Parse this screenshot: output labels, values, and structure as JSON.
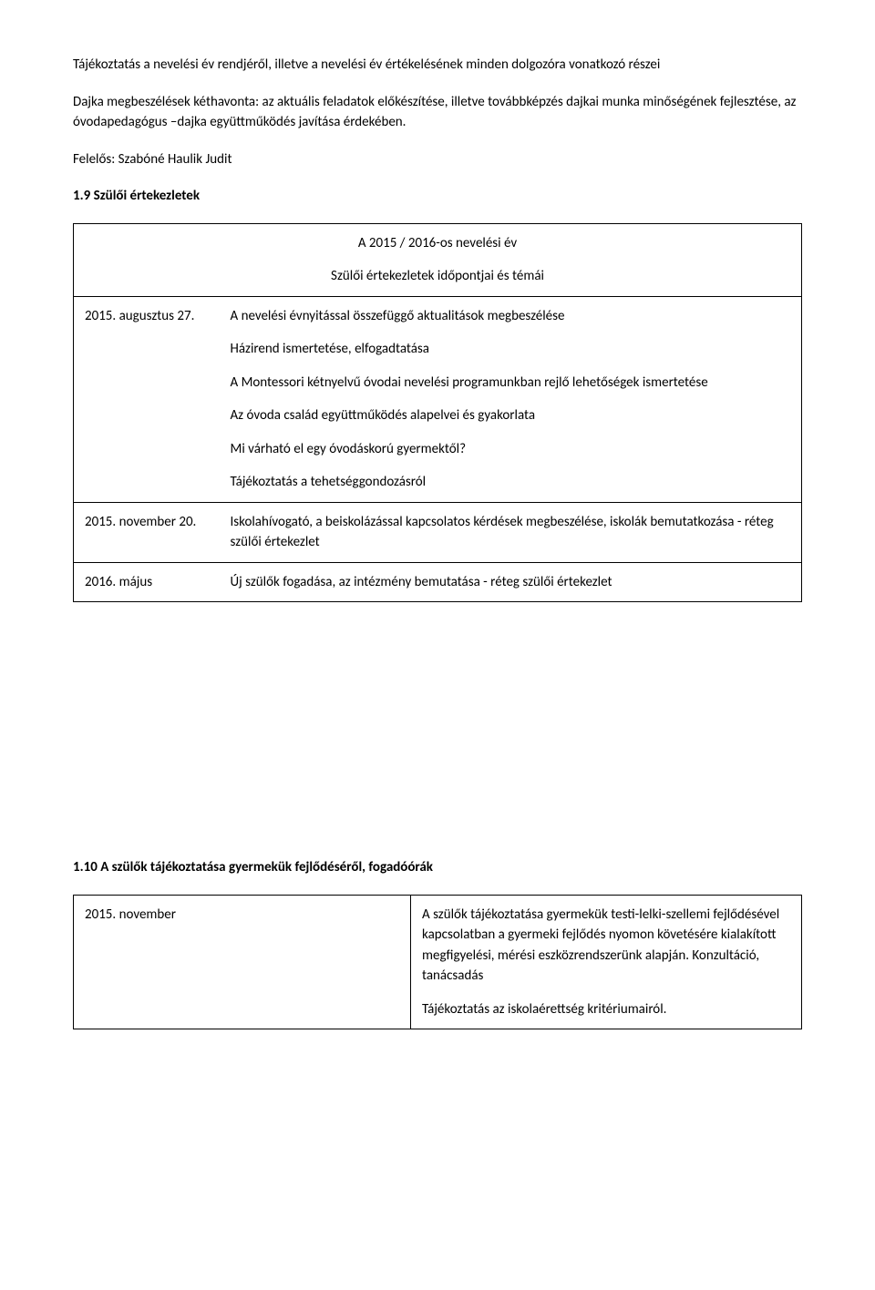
{
  "intro": {
    "p1": "Tájékoztatás a nevelési év rendjéről, illetve a nevelési év értékelésének minden dolgozóra vonatkozó részei",
    "p2": "Dajka megbeszélések kéthavonta: az aktuális feladatok előkészítése, illetve továbbképzés dajkai munka minőségének fejlesztése, az óvodapedagógus –dajka együttműködés javítása érdekében.",
    "p3": "Felelős: Szabóné Haulik Judit",
    "h1": "1.9 Szülői értekezletek"
  },
  "table1": {
    "header_l1": "A 2015 / 2016-os nevelési év",
    "header_l2": "Szülői értekezletek időpontjai és témái",
    "row1": {
      "date": "2015. augusztus 27.",
      "c1": "A nevelési évnyitással összefüggő aktualitások megbeszélése",
      "c2": "Házirend ismertetése, elfogadtatása",
      "c3": "A Montessori kétnyelvű óvodai nevelési programunkban rejlő lehetőségek ismertetése",
      "c4": "Az óvoda család együttműködés alapelvei és gyakorlata",
      "c5": "Mi várható el egy óvodáskorú gyermektől?",
      "c6": "Tájékoztatás a tehetséggondozásról"
    },
    "row2": {
      "date": "2015. november 20.",
      "c1": "Iskolahívogató, a beiskolázással kapcsolatos kérdések megbeszélése, iskolák bemutatkozása - réteg szülői értekezlet"
    },
    "row3": {
      "date": "2016. május",
      "c1": "Új szülők fogadása, az intézmény bemutatása - réteg szülői értekezlet"
    }
  },
  "section2": {
    "title": "1.10 A szülők tájékoztatása gyermekük fejlődéséről, fogadóórák"
  },
  "table2": {
    "date": "2015. november",
    "c1": "A szülők tájékoztatása gyermekük testi-lelki-szellemi fejlődésével kapcsolatban a gyermeki fejlődés nyomon követésére kialakított megfigyelési, mérési eszközrendszerünk alapján. Konzultáció, tanácsadás",
    "c2": "Tájékoztatás az iskolaérettség kritériumairól."
  }
}
